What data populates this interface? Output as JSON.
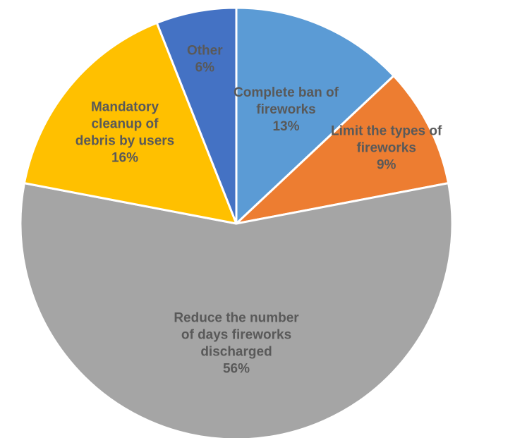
{
  "chart_data": {
    "type": "pie",
    "title": "",
    "slices": [
      {
        "name": "Complete ban of fireworks",
        "label_lines": [
          "Complete ban of",
          "fireworks"
        ],
        "pct_label": "13%",
        "value": 13,
        "color": "#5B9BD5"
      },
      {
        "name": "Limit the types of fireworks",
        "label_lines": [
          "Limit the types of",
          "fireworks"
        ],
        "pct_label": "9%",
        "value": 9,
        "color": "#ED7D31"
      },
      {
        "name": "Reduce the number of days fireworks discharged",
        "label_lines": [
          "Reduce the number",
          "of days fireworks",
          "discharged"
        ],
        "pct_label": "56%",
        "value": 56,
        "color": "#A5A5A5"
      },
      {
        "name": "Mandatory cleanup of debris by users",
        "label_lines": [
          "Mandatory",
          "cleanup of",
          "debris by users"
        ],
        "pct_label": "16%",
        "value": 16,
        "color": "#FFC000"
      },
      {
        "name": "Other",
        "label_lines": [
          "Other"
        ],
        "pct_label": "6%",
        "value": 6,
        "color": "#4472C4"
      }
    ],
    "start_angle_deg": 0,
    "direction": "clockwise",
    "legend": "none"
  }
}
